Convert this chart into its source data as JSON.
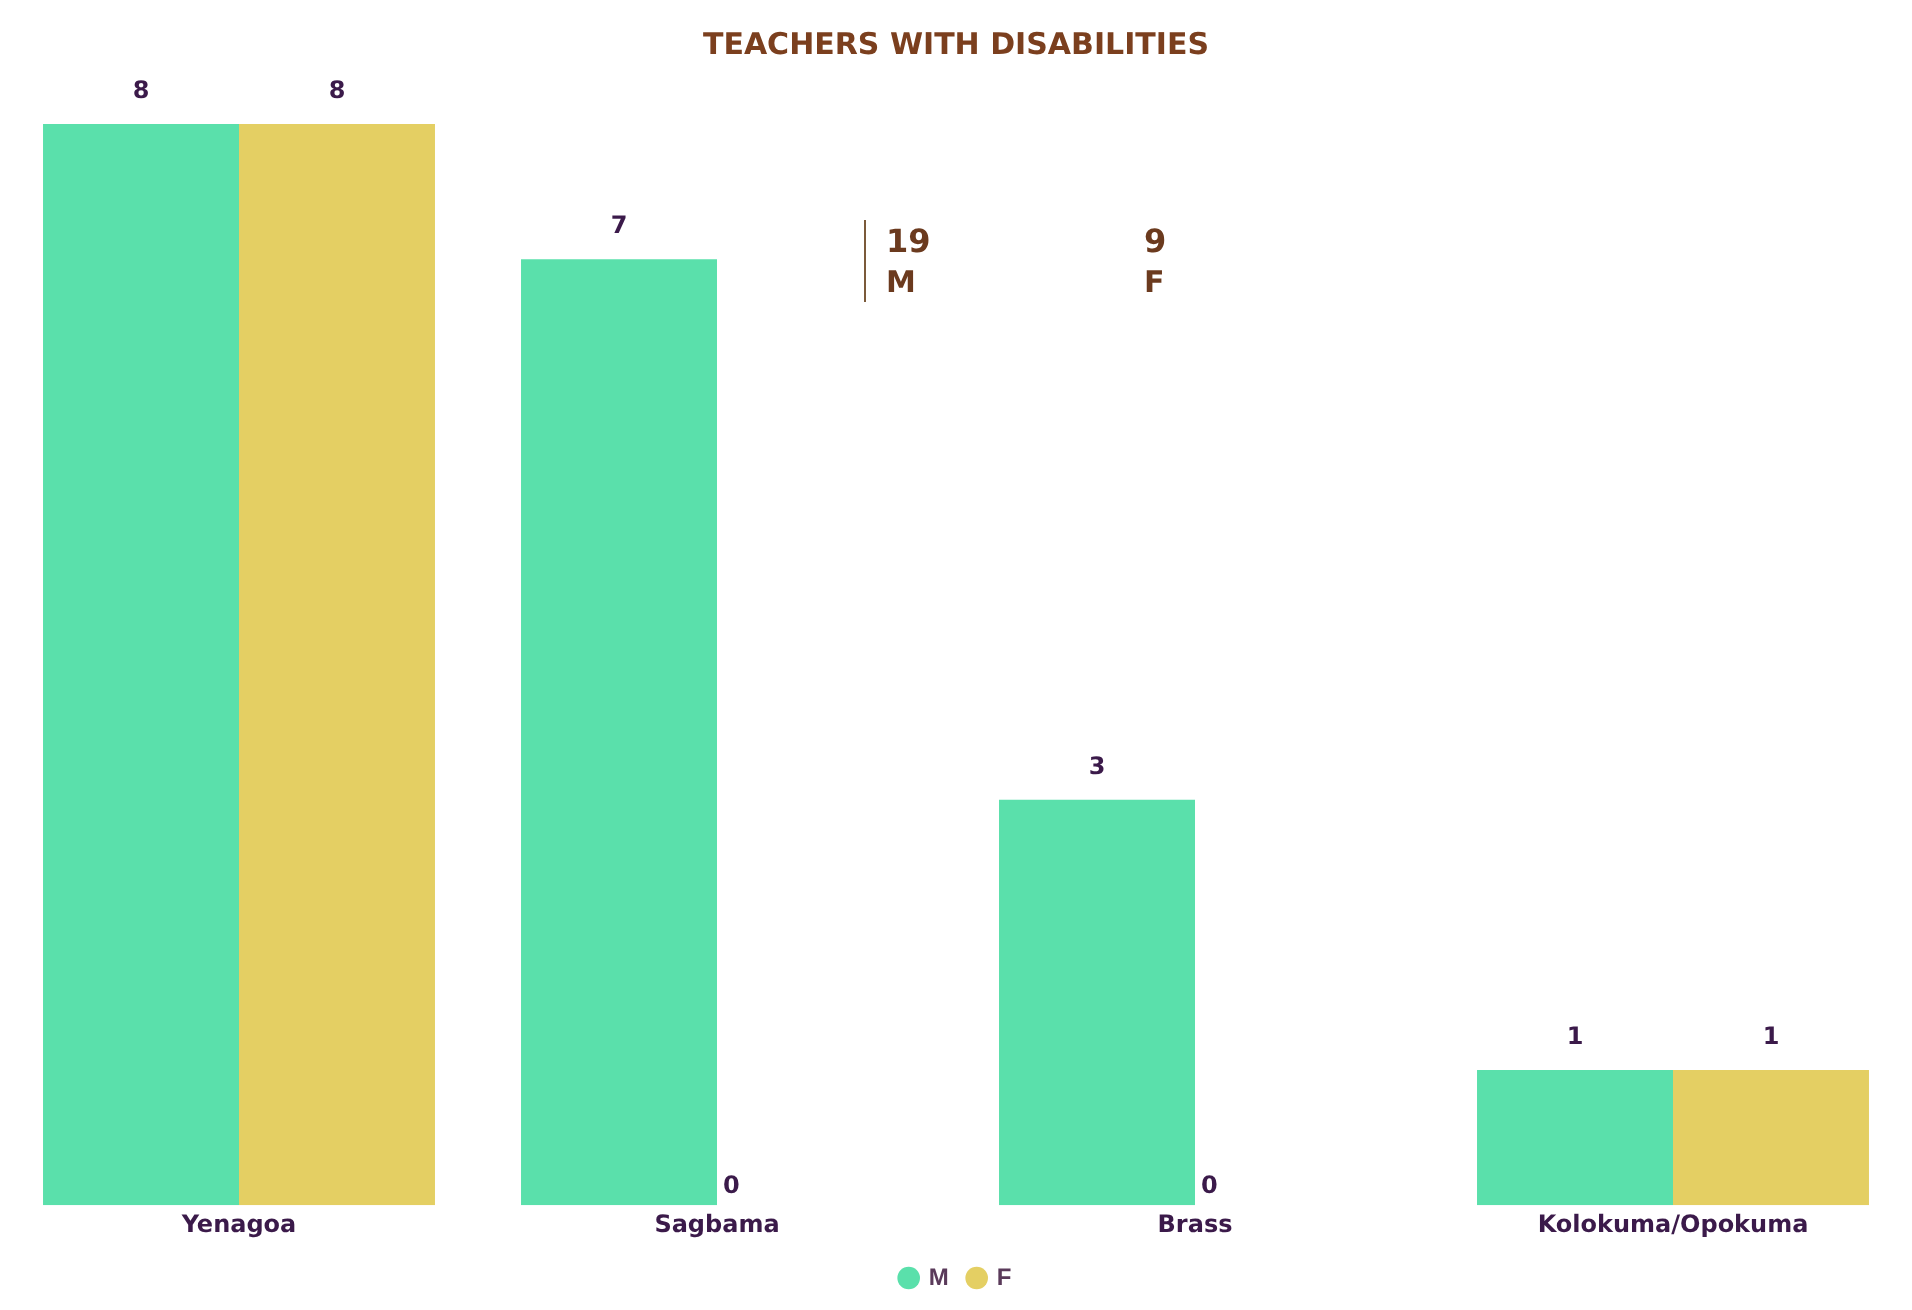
{
  "chart_data": {
    "type": "bar",
    "title": "TEACHERS WITH DISABILITIES",
    "categories": [
      "Yenagoa",
      "Sagbama",
      "Brass",
      "Kolokuma/Opokuma"
    ],
    "series": [
      {
        "name": "M",
        "color": "#5ae0ab",
        "values": [
          8,
          7,
          3,
          1
        ]
      },
      {
        "name": "F",
        "color": "#e4cf63",
        "values": [
          8,
          0,
          0,
          1
        ]
      }
    ],
    "ylim": [
      0,
      8
    ],
    "data_labels": true,
    "grid": false,
    "legend": "bottom",
    "annotations": [
      "19",
      "M",
      "9",
      "F"
    ]
  }
}
